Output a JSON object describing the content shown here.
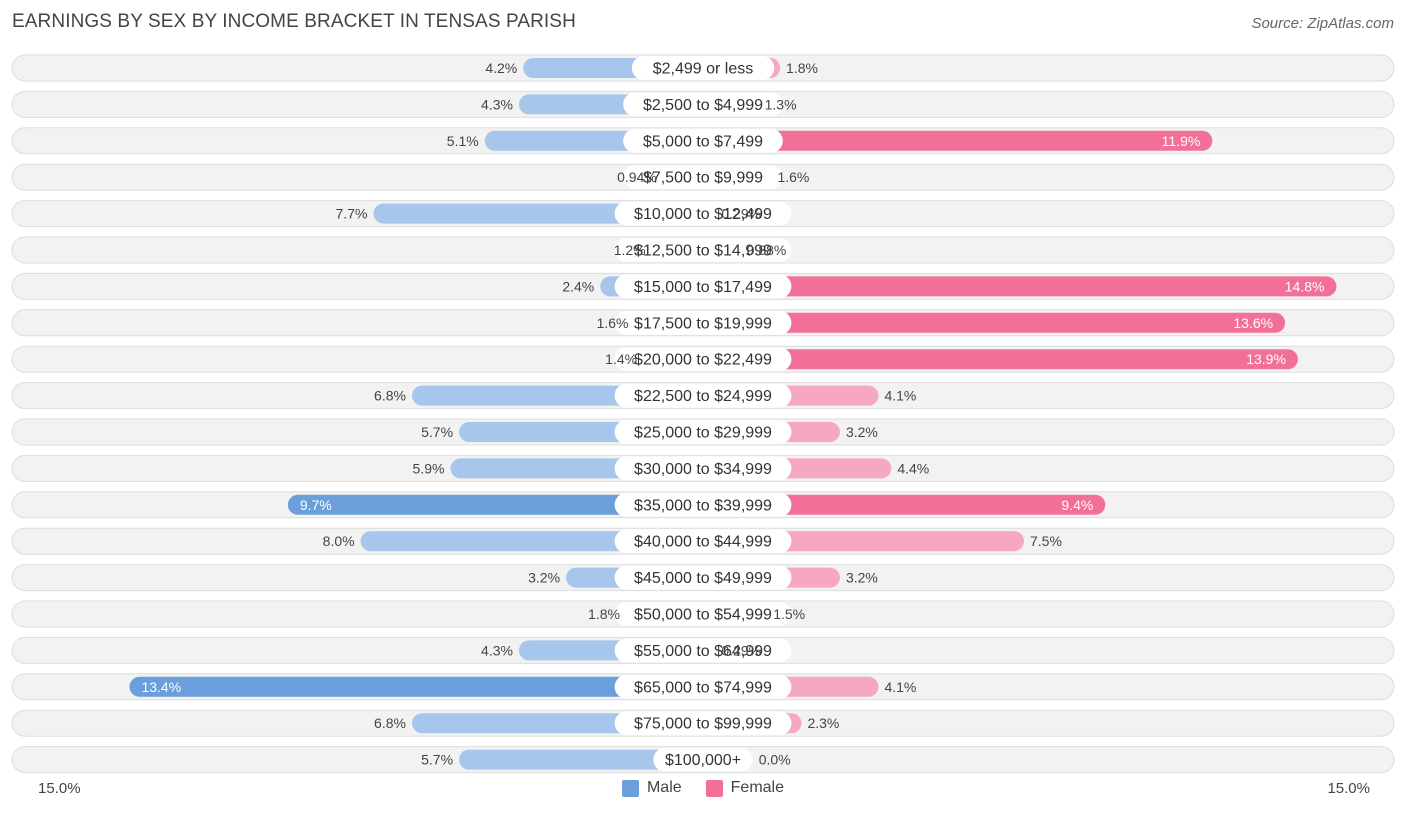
{
  "title": "EARNINGS BY SEX BY INCOME BRACKET IN TENSAS PARISH",
  "source": "Source: ZipAtlas.com",
  "axis": {
    "left_label": "15.0%",
    "right_label": "15.0%"
  },
  "legend": {
    "male_label": "Male",
    "female_label": "Female"
  },
  "colors": {
    "male_dark": "#6a9fdc",
    "male_light": "#a7c6eb",
    "female_dark": "#f27097",
    "female_light": "#f6a8c0",
    "row_bg": "#f2f2f2"
  },
  "chart_data": {
    "type": "bar",
    "orientation": "diverging-horizontal",
    "title": "EARNINGS BY SEX BY INCOME BRACKET IN TENSAS PARISH",
    "xlim": [
      -15.0,
      15.0
    ],
    "categories": [
      "$2,499 or less",
      "$2,500 to $4,999",
      "$5,000 to $7,499",
      "$7,500 to $9,999",
      "$10,000 to $12,499",
      "$12,500 to $14,999",
      "$15,000 to $17,499",
      "$17,500 to $19,999",
      "$20,000 to $22,499",
      "$22,500 to $24,999",
      "$25,000 to $29,999",
      "$30,000 to $34,999",
      "$35,000 to $39,999",
      "$40,000 to $44,999",
      "$45,000 to $49,999",
      "$50,000 to $54,999",
      "$55,000 to $64,999",
      "$65,000 to $74,999",
      "$75,000 to $99,999",
      "$100,000+"
    ],
    "series": [
      {
        "name": "Male",
        "values": [
          4.2,
          4.3,
          5.1,
          0.94,
          7.7,
          1.2,
          2.4,
          1.6,
          1.4,
          6.8,
          5.7,
          5.9,
          9.7,
          8.0,
          3.2,
          1.8,
          4.3,
          13.4,
          6.8,
          5.7
        ],
        "labels": [
          "4.2%",
          "4.3%",
          "5.1%",
          "0.94%",
          "7.7%",
          "1.2%",
          "2.4%",
          "1.6%",
          "1.4%",
          "6.8%",
          "5.7%",
          "5.9%",
          "9.7%",
          "8.0%",
          "3.2%",
          "1.8%",
          "4.3%",
          "13.4%",
          "6.8%",
          "5.7%"
        ]
      },
      {
        "name": "Female",
        "values": [
          1.8,
          1.3,
          11.9,
          1.6,
          0.29,
          0.88,
          14.8,
          13.6,
          13.9,
          4.1,
          3.2,
          4.4,
          9.4,
          7.5,
          3.2,
          1.5,
          0.29,
          4.1,
          2.3,
          0.0
        ],
        "labels": [
          "1.8%",
          "1.3%",
          "11.9%",
          "1.6%",
          "0.29%",
          "0.88%",
          "14.8%",
          "13.6%",
          "13.9%",
          "4.1%",
          "3.2%",
          "4.4%",
          "9.4%",
          "7.5%",
          "3.2%",
          "1.5%",
          "0.29%",
          "4.1%",
          "2.3%",
          "0.0%"
        ]
      }
    ]
  }
}
